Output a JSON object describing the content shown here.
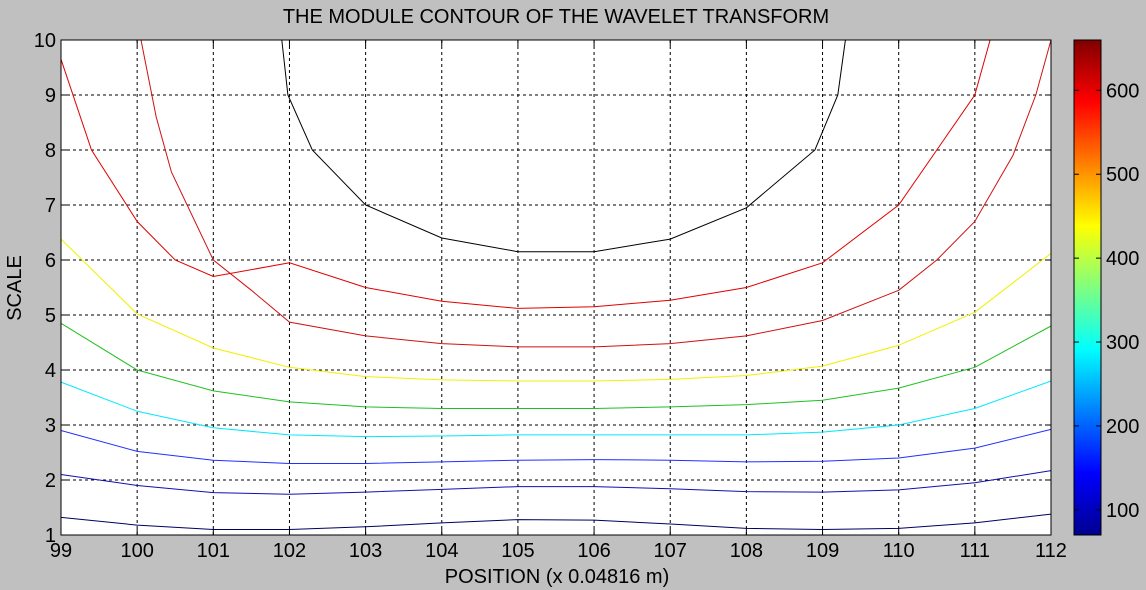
{
  "chart_data": {
    "type": "contour",
    "title": "THE MODULE CONTOUR OF THE WAVELET TRANSFORM",
    "xlabel": "POSITION (x 0.04816 m)",
    "ylabel": "SCALE",
    "xlim": [
      99,
      112
    ],
    "ylim": [
      1,
      10
    ],
    "xticks": [
      "99",
      "100",
      "101",
      "102",
      "103",
      "104",
      "105",
      "106",
      "107",
      "108",
      "109",
      "110",
      "111",
      "112"
    ],
    "yticks": [
      "1",
      "2",
      "3",
      "4",
      "5",
      "6",
      "7",
      "8",
      "9",
      "10"
    ],
    "grid": true,
    "colorbar": {
      "range": [
        70,
        660
      ],
      "ticks": [
        "100",
        "200",
        "300",
        "400",
        "500",
        "600"
      ],
      "colormap": "jet"
    },
    "contours": [
      {
        "color": "#000060",
        "points": [
          [
            99,
            1.32
          ],
          [
            100,
            1.18
          ],
          [
            101,
            1.1
          ],
          [
            102,
            1.1
          ],
          [
            103,
            1.15
          ],
          [
            104,
            1.22
          ],
          [
            105,
            1.28
          ],
          [
            106,
            1.27
          ],
          [
            107,
            1.2
          ],
          [
            108,
            1.12
          ],
          [
            109,
            1.1
          ],
          [
            110,
            1.12
          ],
          [
            111,
            1.22
          ],
          [
            112,
            1.38
          ]
        ]
      },
      {
        "color": "#1010b0",
        "points": [
          [
            99,
            2.1
          ],
          [
            100,
            1.9
          ],
          [
            101,
            1.77
          ],
          [
            102,
            1.74
          ],
          [
            103,
            1.78
          ],
          [
            104,
            1.83
          ],
          [
            105,
            1.88
          ],
          [
            106,
            1.88
          ],
          [
            107,
            1.84
          ],
          [
            108,
            1.79
          ],
          [
            109,
            1.78
          ],
          [
            110,
            1.82
          ],
          [
            111,
            1.95
          ],
          [
            112,
            2.17
          ]
        ]
      },
      {
        "color": "#2030ff",
        "points": [
          [
            99,
            2.9
          ],
          [
            100,
            2.52
          ],
          [
            101,
            2.36
          ],
          [
            102,
            2.3
          ],
          [
            103,
            2.3
          ],
          [
            104,
            2.33
          ],
          [
            105,
            2.36
          ],
          [
            106,
            2.37
          ],
          [
            107,
            2.36
          ],
          [
            108,
            2.33
          ],
          [
            109,
            2.34
          ],
          [
            110,
            2.4
          ],
          [
            111,
            2.58
          ],
          [
            112,
            2.92
          ]
        ]
      },
      {
        "color": "#00e8ff",
        "points": [
          [
            99,
            3.78
          ],
          [
            100,
            3.25
          ],
          [
            101,
            2.95
          ],
          [
            102,
            2.82
          ],
          [
            103,
            2.79
          ],
          [
            104,
            2.8
          ],
          [
            105,
            2.82
          ],
          [
            106,
            2.82
          ],
          [
            107,
            2.82
          ],
          [
            108,
            2.82
          ],
          [
            109,
            2.87
          ],
          [
            110,
            3.0
          ],
          [
            111,
            3.3
          ],
          [
            112,
            3.8
          ]
        ]
      },
      {
        "color": "#20c020",
        "points": [
          [
            99,
            4.85
          ],
          [
            100,
            4.0
          ],
          [
            101,
            3.62
          ],
          [
            102,
            3.42
          ],
          [
            103,
            3.33
          ],
          [
            104,
            3.3
          ],
          [
            105,
            3.3
          ],
          [
            106,
            3.3
          ],
          [
            107,
            3.33
          ],
          [
            108,
            3.37
          ],
          [
            109,
            3.45
          ],
          [
            110,
            3.67
          ],
          [
            111,
            4.05
          ],
          [
            112,
            4.8
          ]
        ]
      },
      {
        "color": "#f0f000",
        "points": [
          [
            99,
            6.38
          ],
          [
            100,
            5.02
          ],
          [
            101,
            4.4
          ],
          [
            102,
            4.05
          ],
          [
            103,
            3.88
          ],
          [
            104,
            3.82
          ],
          [
            105,
            3.8
          ],
          [
            106,
            3.8
          ],
          [
            107,
            3.83
          ],
          [
            108,
            3.9
          ],
          [
            109,
            4.07
          ],
          [
            110,
            4.45
          ],
          [
            111,
            5.05
          ],
          [
            112,
            6.12
          ]
        ]
      },
      {
        "color": "#d01010",
        "points": [
          [
            100.05,
            10
          ],
          [
            100.25,
            8.6
          ],
          [
            100.45,
            7.6
          ],
          [
            101,
            6.0
          ],
          [
            101.5,
            5.45
          ],
          [
            102,
            4.87
          ],
          [
            103,
            4.62
          ],
          [
            104,
            4.48
          ],
          [
            105,
            4.42
          ],
          [
            106,
            4.42
          ],
          [
            107,
            4.48
          ],
          [
            108,
            4.62
          ],
          [
            109,
            4.9
          ],
          [
            110,
            5.45
          ],
          [
            110.5,
            6.0
          ],
          [
            111,
            6.7
          ],
          [
            111.5,
            7.9
          ],
          [
            111.8,
            9.0
          ],
          [
            112,
            10
          ]
        ]
      },
      {
        "color": "#e00000",
        "points": [
          [
            99,
            9.65
          ],
          [
            99.4,
            8.0
          ],
          [
            100,
            6.7
          ],
          [
            100.5,
            6.0
          ],
          [
            101,
            5.7
          ],
          [
            102,
            5.95
          ],
          [
            103,
            5.5
          ],
          [
            104,
            5.25
          ],
          [
            105,
            5.12
          ],
          [
            106,
            5.15
          ],
          [
            107,
            5.27
          ],
          [
            108,
            5.5
          ],
          [
            109,
            5.95
          ],
          [
            110,
            7.0
          ],
          [
            110.5,
            8.0
          ],
          [
            111,
            9.0
          ],
          [
            111.2,
            10
          ]
        ]
      },
      {
        "color": "#000000",
        "points": [
          [
            101.9,
            10
          ],
          [
            101.98,
            9.0
          ],
          [
            102.3,
            8.0
          ],
          [
            103,
            7.0
          ],
          [
            104,
            6.4
          ],
          [
            105,
            6.15
          ],
          [
            106,
            6.15
          ],
          [
            107,
            6.38
          ],
          [
            108,
            6.95
          ],
          [
            108.9,
            8.0
          ],
          [
            109.2,
            9.0
          ],
          [
            109.3,
            10
          ]
        ]
      }
    ]
  }
}
